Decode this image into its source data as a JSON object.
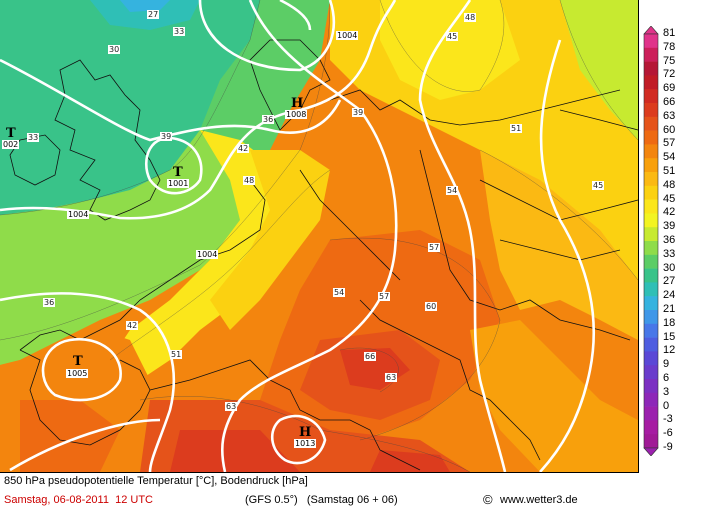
{
  "map": {
    "isotherm_labels": [
      "27",
      "30",
      "33",
      "36",
      "39",
      "42",
      "45",
      "48",
      "51",
      "54",
      "57",
      "60",
      "63",
      "66"
    ],
    "pressure_labels": [
      "1004",
      "1008",
      "1001",
      "1005",
      "1013",
      "002"
    ],
    "pressure_centers": [
      {
        "letter": "T",
        "value": "002"
      },
      {
        "letter": "H",
        "value": "1008"
      },
      {
        "letter": "T",
        "value": "1001"
      },
      {
        "letter": "T",
        "value": "1005"
      },
      {
        "letter": "H",
        "value": "1013"
      }
    ]
  },
  "scale": {
    "values": [
      "81",
      "78",
      "75",
      "72",
      "69",
      "66",
      "63",
      "60",
      "57",
      "54",
      "51",
      "48",
      "45",
      "42",
      "39",
      "36",
      "33",
      "30",
      "27",
      "24",
      "21",
      "18",
      "15",
      "12",
      "9",
      "6",
      "3",
      "0",
      "-3",
      "-6",
      "-9"
    ],
    "colors": [
      "#e0338a",
      "#cc1f5a",
      "#b51736",
      "#c11c26",
      "#d12b22",
      "#dc3c1e",
      "#e5531a",
      "#ee6a12",
      "#f3850e",
      "#f8a00c",
      "#fbb913",
      "#fbd111",
      "#fbe61b",
      "#f3f422",
      "#c7ea30",
      "#8fdc4a",
      "#5ccd66",
      "#39c389",
      "#2fbfb6",
      "#35b3df",
      "#3f97e8",
      "#4877e8",
      "#4e5de0",
      "#5a48d6",
      "#6a3ccc",
      "#7c30c2",
      "#8d27b8",
      "#9b21ae",
      "#a61ca2",
      "#a01a96"
    ]
  },
  "footer": {
    "line1": "850 hPa pseudopotentielle Temperatur [°C], Bodendruck [hPa]",
    "date": "Samstag, 06-08-2011  12 UTC",
    "model": "(GFS 0.5°)   (Samstag 06 + 06)",
    "copyright": "©",
    "site": "www.wetter3.de"
  },
  "colors": {
    "red_text": "#cc0000"
  }
}
